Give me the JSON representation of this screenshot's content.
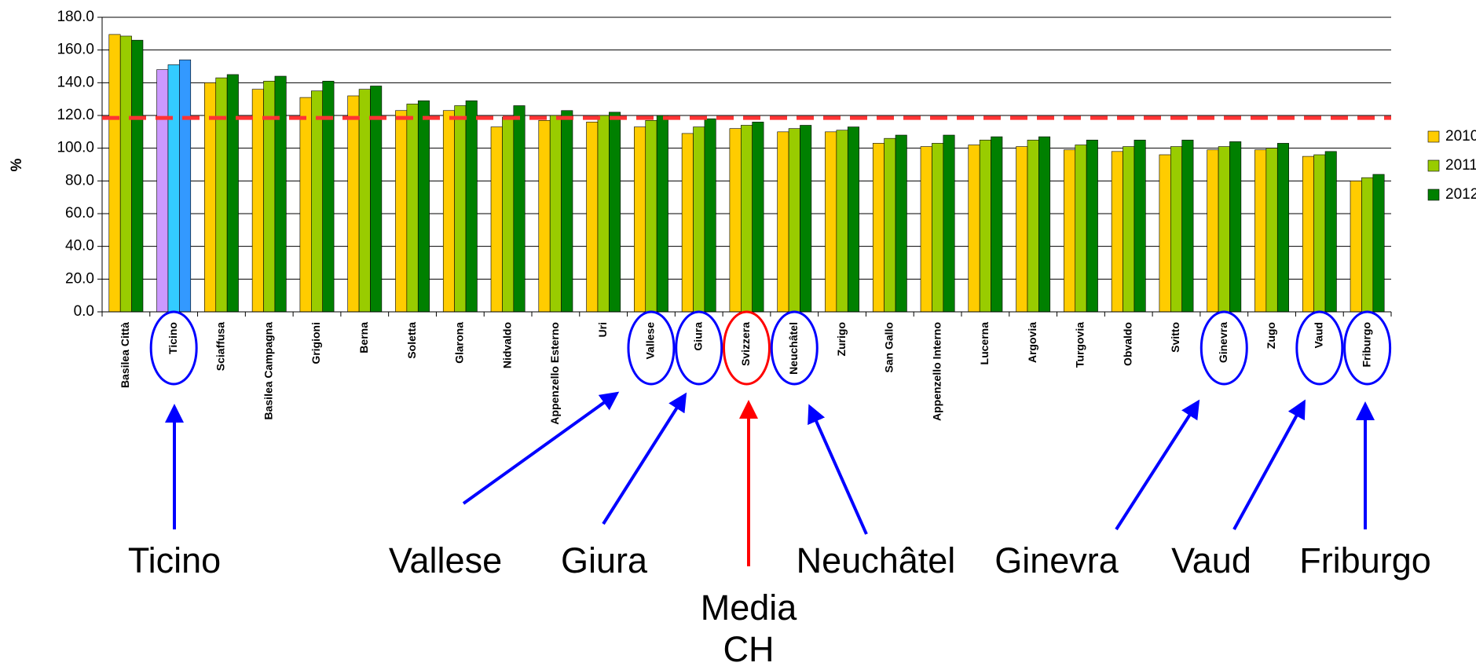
{
  "chart_data": {
    "type": "bar",
    "ylabel": "%",
    "categories": [
      "Basilea Città",
      "Ticino",
      "Sciaffusa",
      "Basilea Campagna",
      "Grigioni",
      "Berna",
      "Soletta",
      "Glarona",
      "Nidvaldo",
      "Appenzello Esterno",
      "Uri",
      "Vallese",
      "Giura",
      "Svizzera",
      "Neuchâtel",
      "Zurigo",
      "San Gallo",
      "Appenzello Interno",
      "Lucerna",
      "Argovia",
      "Turgovia",
      "Obvaldo",
      "Svitto",
      "Ginevra",
      "Zugo",
      "Vaud",
      "Friburgo"
    ],
    "series": [
      {
        "name": "2010",
        "color": "#ffcc00",
        "values": [
          169.5,
          148,
          140,
          136,
          131,
          132,
          123,
          123,
          113,
          117,
          116,
          113,
          109,
          112,
          110,
          110,
          103,
          101,
          102,
          101,
          99,
          98,
          96,
          99,
          99,
          95,
          80
        ]
      },
      {
        "name": "2011",
        "color": "#99cc00",
        "values": [
          168.5,
          151,
          143,
          141,
          135,
          136,
          127,
          126,
          119,
          120,
          120,
          117,
          113,
          114,
          112,
          111,
          106,
          103,
          105,
          105,
          102,
          101,
          101,
          101,
          100,
          96,
          82
        ]
      },
      {
        "name": "2012",
        "color": "#008000",
        "values": [
          166,
          154,
          145,
          144,
          141,
          138,
          129,
          129,
          126,
          123,
          122,
          120,
          118,
          116,
          114,
          113,
          108,
          108,
          107,
          107,
          105,
          105,
          105,
          104,
          103,
          98,
          84
        ]
      }
    ],
    "highlight": {
      "category": "Ticino",
      "colors": [
        "#cc99ff",
        "#33ccff",
        "#3399ff"
      ]
    },
    "reference_line": {
      "value": 118.5,
      "color": "#ff3333"
    },
    "ylim": [
      0,
      180
    ],
    "yticks": [
      {
        "value": 0,
        "label": "0.0"
      },
      {
        "value": 20,
        "label": "20.0"
      },
      {
        "value": 40,
        "label": "40.0"
      },
      {
        "value": 60,
        "label": "60.0"
      },
      {
        "value": 80,
        "label": "80.0"
      },
      {
        "value": 100,
        "label": "100.0"
      },
      {
        "value": 120,
        "label": "120.0"
      },
      {
        "value": 140,
        "label": "140.0"
      },
      {
        "value": 160,
        "label": "160.0"
      },
      {
        "value": 180,
        "label": "180.0"
      }
    ],
    "grid": true,
    "legend": "right",
    "annotations": [
      {
        "category": "Ticino",
        "text": [
          "Ticino"
        ],
        "color": "#0000ff"
      },
      {
        "category": "Vallese",
        "text": [
          "Vallese"
        ],
        "color": "#0000ff"
      },
      {
        "category": "Giura",
        "text": [
          "Giura"
        ],
        "color": "#0000ff"
      },
      {
        "category": "Svizzera",
        "text": [
          "Media",
          "CH"
        ],
        "color": "#ff0000"
      },
      {
        "category": "Neuchâtel",
        "text": [
          "Neuchâtel"
        ],
        "color": "#0000ff"
      },
      {
        "category": "Ginevra",
        "text": [
          "Ginevra"
        ],
        "color": "#0000ff"
      },
      {
        "category": "Vaud",
        "text": [
          "Vaud"
        ],
        "color": "#0000ff"
      },
      {
        "category": "Friburgo",
        "text": [
          "Friburgo"
        ],
        "color": "#0000ff"
      }
    ]
  }
}
